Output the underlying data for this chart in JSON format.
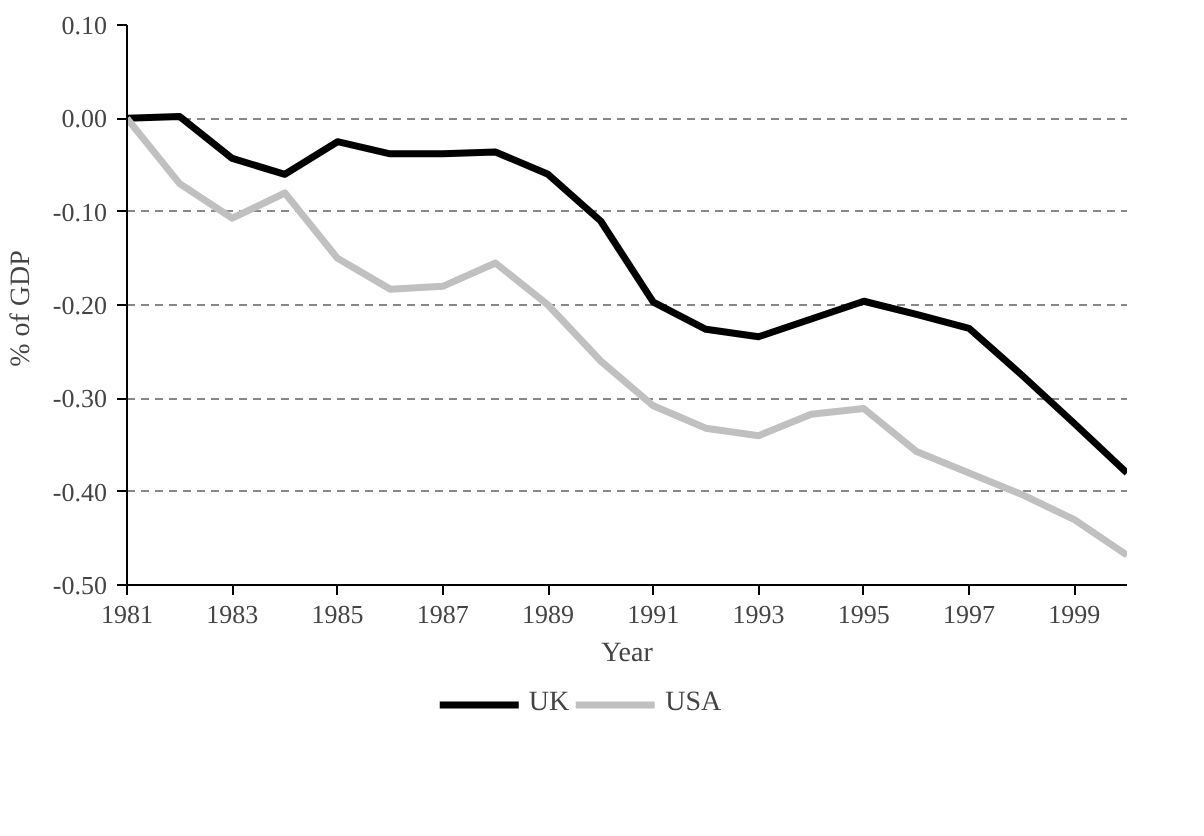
{
  "chart_data": {
    "type": "line",
    "xlabel": "Year",
    "ylabel": "%  of GDP",
    "x": [
      1981,
      1982,
      1983,
      1984,
      1985,
      1986,
      1987,
      1988,
      1989,
      1990,
      1991,
      1992,
      1993,
      1994,
      1995,
      1996,
      1997,
      1998,
      1999,
      2000
    ],
    "series": [
      {
        "name": "UK",
        "color": "#000000",
        "values": [
          0,
          0.002,
          -0.043,
          -0.06,
          -0.025,
          -0.038,
          -0.038,
          -0.036,
          -0.06,
          -0.11,
          -0.197,
          -0.226,
          -0.234,
          -0.215,
          -0.196,
          -0.21,
          -0.225,
          -0.275,
          -0.327,
          -0.38
        ]
      },
      {
        "name": "USA",
        "color": "#c0c0c0",
        "values": [
          0,
          -0.07,
          -0.107,
          -0.08,
          -0.15,
          -0.183,
          -0.18,
          -0.155,
          -0.2,
          -0.26,
          -0.308,
          -0.332,
          -0.34,
          -0.317,
          -0.311,
          -0.357,
          -0.38,
          -0.403,
          -0.43,
          -0.468
        ]
      }
    ],
    "xlim": [
      1981,
      2000
    ],
    "xticks": [
      1981,
      1983,
      1985,
      1987,
      1989,
      1991,
      1993,
      1995,
      1997,
      1999
    ],
    "ylim": [
      -0.5,
      0.1
    ],
    "yticks": [
      {
        "value": -0.5,
        "label": "-0.50"
      },
      {
        "value": -0.4,
        "label": "-0.40"
      },
      {
        "value": -0.3,
        "label": "-0.30"
      },
      {
        "value": -0.2,
        "label": "-0.20"
      },
      {
        "value": -0.1,
        "label": "-0.10"
      },
      {
        "value": 0,
        "label": "0.00"
      },
      {
        "value": 0.1,
        "label": "0.10"
      }
    ],
    "grid": "y",
    "legend": "bottom",
    "line_style": "solid",
    "marker": "none"
  }
}
